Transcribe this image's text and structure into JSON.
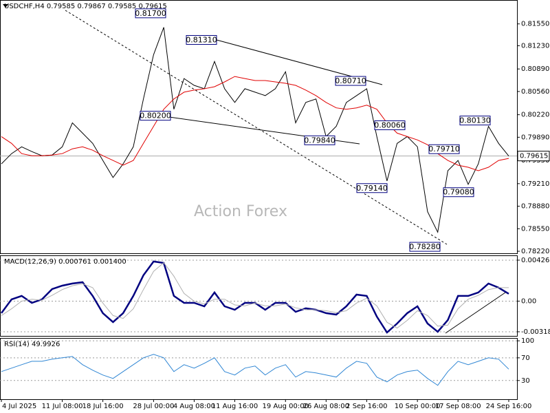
{
  "chart_data": [
    {
      "type": "line",
      "title": "USDCHF,H4  0.79585 0.79867 0.79585 0.79615",
      "watermark": "Action Forex",
      "categories": [
        "4 Jul 2025",
        null,
        null,
        null,
        null,
        null,
        "11 Jul 08:00",
        null,
        null,
        null,
        "18 Jul 16:00",
        null,
        null,
        null,
        null,
        "28 Jul 00:00",
        null,
        null,
        null,
        "4 Aug 08:00",
        null,
        null,
        null,
        "11 Aug 16:00",
        null,
        null,
        null,
        null,
        "19 Aug 00:00",
        null,
        null,
        null,
        "26 Aug 08:00",
        null,
        null,
        null,
        "2 Sep 16:00",
        null,
        null,
        null,
        null,
        "10 Sep 00:00",
        null,
        null,
        null,
        "17 Sep 08:00",
        null,
        null,
        null,
        null,
        "24 Sep 16:00"
      ],
      "series": [
        {
          "color": "#000000",
          "values": [
            0.795,
            0.7965,
            0.7975,
            0.7968,
            0.7962,
            0.7963,
            0.7975,
            0.801,
            0.7995,
            0.798,
            0.7955,
            0.793,
            0.795,
            0.7975,
            0.8045,
            0.811,
            0.815,
            0.803,
            0.8075,
            0.8065,
            0.806,
            0.81,
            0.806,
            0.804,
            0.806,
            0.8055,
            0.805,
            0.806,
            0.8085,
            0.801,
            0.804,
            0.8045,
            0.799,
            0.8005,
            0.804,
            0.805,
            0.806,
            0.799,
            0.7925,
            0.798,
            0.799,
            0.7975,
            0.788,
            0.785,
            0.794,
            0.7955,
            0.792,
            0.795,
            0.8005,
            0.798,
            0.79615
          ]
        },
        {
          "color": "#e00000",
          "values": [
            0.799,
            0.798,
            0.7965,
            0.7962,
            0.7962,
            0.7963,
            0.7965,
            0.7972,
            0.7975,
            0.797,
            0.7962,
            0.7955,
            0.7948,
            0.7955,
            0.798,
            0.8005,
            0.803,
            0.8045,
            0.8055,
            0.8058,
            0.806,
            0.8063,
            0.807,
            0.8078,
            0.8075,
            0.8072,
            0.8072,
            0.807,
            0.8068,
            0.8065,
            0.8058,
            0.805,
            0.804,
            0.8032,
            0.803,
            0.8032,
            0.8036,
            0.803,
            0.801,
            0.7995,
            0.799,
            0.7985,
            0.7978,
            0.7965,
            0.7955,
            0.7948,
            0.7945,
            0.794,
            0.7945,
            0.7955,
            0.7958
          ]
        }
      ],
      "annotations": [
        {
          "value": 0.817,
          "label": "0.81700"
        },
        {
          "value": 0.8131,
          "label": "0.81310"
        },
        {
          "value": 0.802,
          "label": "0.80200"
        },
        {
          "value": 0.7984,
          "label": "0.79840"
        },
        {
          "value": 0.8071,
          "label": "0.80710"
        },
        {
          "value": 0.8006,
          "label": "0.80060"
        },
        {
          "value": 0.7971,
          "label": "0.79710"
        },
        {
          "value": 0.8013,
          "label": "0.80130"
        },
        {
          "value": 0.7914,
          "label": "0.79140"
        },
        {
          "value": 0.7908,
          "label": "0.79080"
        },
        {
          "value": 0.7828,
          "label": "0.78280"
        }
      ],
      "last_price": 0.79615,
      "ylim": [
        0.7819,
        0.819
      ],
      "yticks": [
        {
          "value": 0.8155,
          "label": "0.81550"
        },
        {
          "value": 0.8123,
          "label": "0.81230"
        },
        {
          "value": 0.8089,
          "label": "0.80890"
        },
        {
          "value": 0.8056,
          "label": "0.80560"
        },
        {
          "value": 0.8022,
          "label": "0.80220"
        },
        {
          "value": 0.7989,
          "label": "0.79890"
        },
        {
          "value": 0.7955,
          "label": "0.79550"
        },
        {
          "value": 0.7921,
          "label": "0.79210"
        },
        {
          "value": 0.7888,
          "label": "0.78880"
        },
        {
          "value": 0.7855,
          "label": "0.78550"
        },
        {
          "value": 0.7822,
          "label": "0.78220"
        }
      ],
      "grid": false
    },
    {
      "type": "line",
      "title": "MACD(12,26,9) 0.000761 0.001400",
      "series": [
        {
          "color": "#000080",
          "values": [
            -0.00125,
            0.00018,
            0.00054,
            -0.00018,
            0.00018,
            0.00125,
            0.00161,
            0.00183,
            0.00197,
            0.00054,
            -0.00125,
            -0.00218,
            -0.00125,
            0.00054,
            0.00269,
            0.00412,
            0.00397,
            0.00054,
            -0.00018,
            -0.00018,
            -0.00054,
            0.0009,
            -0.00054,
            -0.0009,
            -0.00018,
            -0.00018,
            -0.0009,
            -0.00018,
            -0.00018,
            -0.00111,
            -0.00075,
            -0.0009,
            -0.00125,
            -0.0014,
            -0.00054,
            0.00068,
            0.00054,
            -0.00161,
            -0.00326,
            -0.00233,
            -0.00125,
            -0.00054,
            -0.00233,
            -0.00319,
            -0.00197,
            0.00054,
            0.00054,
            0.0009,
            0.00183,
            0.0014,
            0.00076
          ]
        },
        {
          "color": "#b0b0b0",
          "values": [
            -0.0015,
            -0.0008,
            0.0,
            0.0002,
            0.0001,
            0.0006,
            0.0012,
            0.0016,
            0.0018,
            0.0014,
            -0.0002,
            -0.0015,
            -0.0018,
            -0.0008,
            0.0012,
            0.0031,
            0.004,
            0.0026,
            0.0008,
            0.0,
            -0.0003,
            0.0002,
            0.0002,
            -0.0004,
            -0.0005,
            -0.0002,
            -0.0005,
            -0.0005,
            -0.0003,
            -0.0007,
            -0.0009,
            -0.0009,
            -0.001,
            -0.0012,
            -0.001,
            -0.0002,
            0.0003,
            -0.0005,
            -0.0022,
            -0.0028,
            -0.002,
            -0.001,
            -0.0015,
            -0.0026,
            -0.0025,
            -0.0008,
            0.0002,
            0.0006,
            0.0012,
            0.0014,
            0.0014
          ]
        }
      ],
      "ylim": [
        -0.00362,
        0.00476
      ],
      "yticks": [
        0.004262,
        {
          "value": 0,
          "label": "0.00"
        },
        -0.003188
      ],
      "grid": true
    },
    {
      "type": "line",
      "title": "RSI(14) 49.9926",
      "series": [
        {
          "color": "#2f86d4",
          "values": [
            45.8,
            51.8,
            57.9,
            63.9,
            63.9,
            67.6,
            70,
            72.4,
            57.9,
            48.2,
            39.7,
            33.6,
            45.8,
            57.9,
            70,
            76.1,
            70,
            45.8,
            57.9,
            51.8,
            60.3,
            70,
            45.8,
            39.7,
            51.8,
            55.5,
            39.7,
            51.8,
            57.9,
            36.1,
            45.8,
            43.3,
            39.7,
            36.1,
            51.8,
            63.9,
            60.3,
            36.1,
            27.6,
            39.7,
            45.8,
            48.2,
            33.6,
            21.5,
            45.8,
            63.9,
            57.9,
            63.9,
            70,
            67.6,
            50
          ]
        }
      ],
      "ylim": [
        -3,
        105
      ],
      "yticks": [
        100,
        70,
        30
      ],
      "grid": true
    }
  ]
}
